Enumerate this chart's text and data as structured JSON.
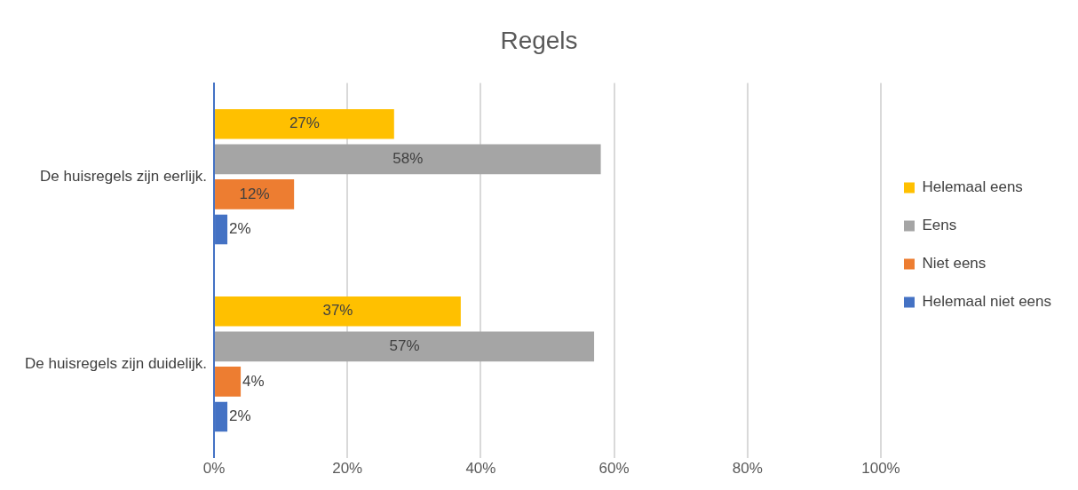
{
  "chart_data": {
    "type": "bar",
    "orientation": "horizontal",
    "title": "Regels",
    "categories": [
      "De huisregels zijn eerlijk.",
      "De huisregels zijn duidelijk."
    ],
    "series": [
      {
        "name": "Helemaal eens",
        "color": "#ffc000",
        "values": [
          27,
          37
        ],
        "value_labels": [
          "27%",
          "37%"
        ]
      },
      {
        "name": "Eens",
        "color": "#a5a5a5",
        "values": [
          58,
          57
        ],
        "value_labels": [
          "58%",
          "57%"
        ]
      },
      {
        "name": "Niet eens",
        "color": "#ed7d31",
        "values": [
          12,
          4
        ],
        "value_labels": [
          "12%",
          "4%"
        ]
      },
      {
        "name": "Helemaal niet eens",
        "color": "#4472c4",
        "values": [
          2,
          2
        ],
        "value_labels": [
          "2%",
          "2%"
        ]
      }
    ],
    "xlim": [
      0,
      100
    ],
    "xticks": [
      {
        "value": 0,
        "label": "0%"
      },
      {
        "value": 20,
        "label": "20%"
      },
      {
        "value": 40,
        "label": "40%"
      },
      {
        "value": 60,
        "label": "60%"
      },
      {
        "value": 80,
        "label": "80%"
      },
      {
        "value": 100,
        "label": "100%"
      }
    ],
    "grid": "x",
    "legend": "right"
  }
}
